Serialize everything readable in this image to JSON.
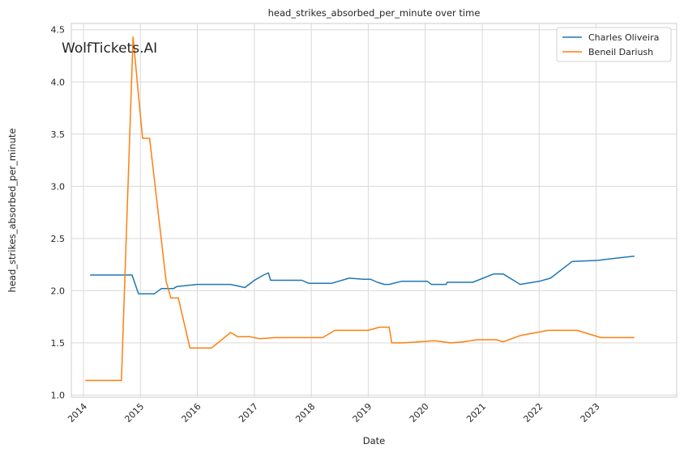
{
  "chart_data": {
    "type": "line",
    "title": "head_strikes_absorbed_per_minute over time",
    "xlabel": "Date",
    "ylabel": "head_strikes_absorbed_per_minute",
    "watermark": "WolfTickets.AI",
    "x_ticks": [
      "2014",
      "2015",
      "2016",
      "2017",
      "2018",
      "2019",
      "2020",
      "2021",
      "2022",
      "2023"
    ],
    "y_ticks": [
      "1.0",
      "1.5",
      "2.0",
      "2.5",
      "3.0",
      "3.5",
      "4.0",
      "4.5"
    ],
    "xlim": [
      "2013-10-15",
      "2024-06-01"
    ],
    "ylim": [
      0.98,
      4.56
    ],
    "grid": true,
    "legend_position": "top-right",
    "series": [
      {
        "name": "Charles Oliveira",
        "color": "#1f77b4",
        "points": [
          [
            "2014-02-15",
            2.15
          ],
          [
            "2014-11-08",
            2.15
          ],
          [
            "2014-12-20",
            1.97
          ],
          [
            "2015-03-01",
            1.97
          ],
          [
            "2015-04-01",
            1.97
          ],
          [
            "2015-05-15",
            2.02
          ],
          [
            "2015-08-01",
            2.02
          ],
          [
            "2015-08-23",
            2.04
          ],
          [
            "2016-01-01",
            2.06
          ],
          [
            "2016-05-01",
            2.06
          ],
          [
            "2016-08-01",
            2.06
          ],
          [
            "2016-11-01",
            2.03
          ],
          [
            "2017-01-01",
            2.1
          ],
          [
            "2017-03-01",
            2.15
          ],
          [
            "2017-04-01",
            2.17
          ],
          [
            "2017-04-15",
            2.1
          ],
          [
            "2017-11-01",
            2.1
          ],
          [
            "2017-12-16",
            2.07
          ],
          [
            "2018-03-01",
            2.07
          ],
          [
            "2018-05-10",
            2.07
          ],
          [
            "2018-09-01",
            2.12
          ],
          [
            "2018-12-01",
            2.11
          ],
          [
            "2019-01-15",
            2.11
          ],
          [
            "2019-03-01",
            2.08
          ],
          [
            "2019-04-15",
            2.06
          ],
          [
            "2019-05-15",
            2.06
          ],
          [
            "2019-08-01",
            2.09
          ],
          [
            "2019-10-01",
            2.09
          ],
          [
            "2020-01-15",
            2.09
          ],
          [
            "2020-02-10",
            2.06
          ],
          [
            "2020-04-01",
            2.06
          ],
          [
            "2020-05-15",
            2.06
          ],
          [
            "2020-05-20",
            2.08
          ],
          [
            "2020-08-01",
            2.08
          ],
          [
            "2020-11-01",
            2.08
          ],
          [
            "2021-03-15",
            2.16
          ],
          [
            "2021-05-15",
            2.16
          ],
          [
            "2021-09-01",
            2.06
          ],
          [
            "2022-01-01",
            2.09
          ],
          [
            "2022-03-15",
            2.12
          ],
          [
            "2022-08-01",
            2.28
          ],
          [
            "2023-01-15",
            2.29
          ],
          [
            "2023-03-01",
            2.3
          ],
          [
            "2023-09-01",
            2.33
          ]
        ]
      },
      {
        "name": "Beneil Dariush",
        "color": "#ff7f0e",
        "points": [
          [
            "2014-01-15",
            1.14
          ],
          [
            "2014-09-01",
            1.14
          ],
          [
            "2014-11-15",
            4.43
          ],
          [
            "2015-01-15",
            3.46
          ],
          [
            "2015-03-01",
            3.46
          ],
          [
            "2015-06-15",
            2.09
          ],
          [
            "2015-07-15",
            1.93
          ],
          [
            "2015-09-01",
            1.93
          ],
          [
            "2015-11-15",
            1.45
          ],
          [
            "2016-01-01",
            1.45
          ],
          [
            "2016-03-01",
            1.45
          ],
          [
            "2016-04-01",
            1.45
          ],
          [
            "2016-08-01",
            1.6
          ],
          [
            "2016-09-15",
            1.56
          ],
          [
            "2016-12-01",
            1.56
          ],
          [
            "2017-02-01",
            1.54
          ],
          [
            "2017-05-15",
            1.55
          ],
          [
            "2017-09-01",
            1.55
          ],
          [
            "2018-03-15",
            1.55
          ],
          [
            "2018-06-01",
            1.62
          ],
          [
            "2018-09-01",
            1.62
          ],
          [
            "2019-01-01",
            1.62
          ],
          [
            "2019-03-15",
            1.65
          ],
          [
            "2019-05-15",
            1.65
          ],
          [
            "2019-06-01",
            1.5
          ],
          [
            "2019-08-15",
            1.5
          ],
          [
            "2020-03-01",
            1.52
          ],
          [
            "2020-06-15",
            1.5
          ],
          [
            "2020-09-01",
            1.51
          ],
          [
            "2020-12-01",
            1.53
          ],
          [
            "2021-01-01",
            1.53
          ],
          [
            "2021-04-01",
            1.53
          ],
          [
            "2021-05-15",
            1.51
          ],
          [
            "2021-09-01",
            1.57
          ],
          [
            "2022-03-01",
            1.62
          ],
          [
            "2022-06-01",
            1.62
          ],
          [
            "2022-09-01",
            1.62
          ],
          [
            "2023-02-01",
            1.55
          ],
          [
            "2023-03-01",
            1.55
          ],
          [
            "2023-09-01",
            1.55
          ]
        ]
      }
    ]
  }
}
